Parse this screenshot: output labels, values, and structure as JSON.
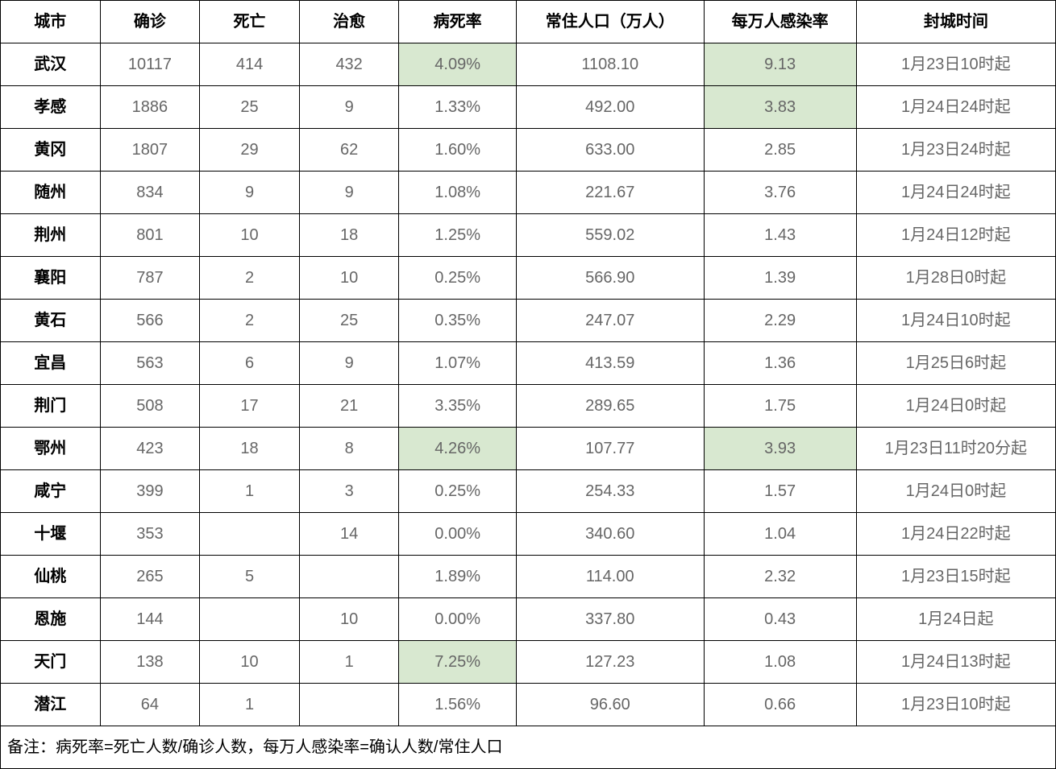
{
  "table": {
    "type": "table",
    "background_color": "#ffffff",
    "border_color": "#000000",
    "highlight_color": "#d8e8d0",
    "header_font_weight": "bold",
    "header_color": "#000000",
    "city_font_weight": "bold",
    "city_color": "#000000",
    "data_color": "#666666",
    "font_size": 20,
    "columns": [
      {
        "key": "city",
        "label": "城市",
        "width": "8.5%"
      },
      {
        "key": "confirmed",
        "label": "确诊",
        "width": "8.5%"
      },
      {
        "key": "death",
        "label": "死亡",
        "width": "8.5%"
      },
      {
        "key": "cured",
        "label": "治愈",
        "width": "8.5%"
      },
      {
        "key": "mortality",
        "label": "病死率",
        "width": "10%"
      },
      {
        "key": "population",
        "label": "常住人口（万人）",
        "width": "16%"
      },
      {
        "key": "infection_rate",
        "label": "每万人感染率",
        "width": "13%"
      },
      {
        "key": "lockdown",
        "label": "封城时间",
        "width": "17%"
      }
    ],
    "rows": [
      {
        "city": "武汉",
        "confirmed": "10117",
        "death": "414",
        "cured": "432",
        "mortality": "4.09%",
        "mortality_hl": true,
        "population": "1108.10",
        "infection_rate": "9.13",
        "infection_hl": true,
        "lockdown": "1月23日10时起"
      },
      {
        "city": "孝感",
        "confirmed": "1886",
        "death": "25",
        "cured": "9",
        "mortality": "1.33%",
        "mortality_hl": false,
        "population": "492.00",
        "infection_rate": "3.83",
        "infection_hl": true,
        "lockdown": "1月24日24时起"
      },
      {
        "city": "黄冈",
        "confirmed": "1807",
        "death": "29",
        "cured": "62",
        "mortality": "1.60%",
        "mortality_hl": false,
        "population": "633.00",
        "infection_rate": "2.85",
        "infection_hl": false,
        "lockdown": "1月23日24时起"
      },
      {
        "city": "随州",
        "confirmed": "834",
        "death": "9",
        "cured": "9",
        "mortality": "1.08%",
        "mortality_hl": false,
        "population": "221.67",
        "infection_rate": "3.76",
        "infection_hl": false,
        "lockdown": "1月24日24时起"
      },
      {
        "city": "荆州",
        "confirmed": "801",
        "death": "10",
        "cured": "18",
        "mortality": "1.25%",
        "mortality_hl": false,
        "population": "559.02",
        "infection_rate": "1.43",
        "infection_hl": false,
        "lockdown": "1月24日12时起"
      },
      {
        "city": "襄阳",
        "confirmed": "787",
        "death": "2",
        "cured": "10",
        "mortality": "0.25%",
        "mortality_hl": false,
        "population": "566.90",
        "infection_rate": "1.39",
        "infection_hl": false,
        "lockdown": "1月28日0时起"
      },
      {
        "city": "黄石",
        "confirmed": "566",
        "death": "2",
        "cured": "25",
        "mortality": "0.35%",
        "mortality_hl": false,
        "population": "247.07",
        "infection_rate": "2.29",
        "infection_hl": false,
        "lockdown": "1月24日10时起"
      },
      {
        "city": "宜昌",
        "confirmed": "563",
        "death": "6",
        "cured": "9",
        "mortality": "1.07%",
        "mortality_hl": false,
        "population": "413.59",
        "infection_rate": "1.36",
        "infection_hl": false,
        "lockdown": "1月25日6时起"
      },
      {
        "city": "荆门",
        "confirmed": "508",
        "death": "17",
        "cured": "21",
        "mortality": "3.35%",
        "mortality_hl": false,
        "population": "289.65",
        "infection_rate": "1.75",
        "infection_hl": false,
        "lockdown": "1月24日0时起"
      },
      {
        "city": "鄂州",
        "confirmed": "423",
        "death": "18",
        "cured": "8",
        "mortality": "4.26%",
        "mortality_hl": true,
        "population": "107.77",
        "infection_rate": "3.93",
        "infection_hl": true,
        "lockdown": "1月23日11时20分起"
      },
      {
        "city": "咸宁",
        "confirmed": "399",
        "death": "1",
        "cured": "3",
        "mortality": "0.25%",
        "mortality_hl": false,
        "population": "254.33",
        "infection_rate": "1.57",
        "infection_hl": false,
        "lockdown": "1月24日0时起"
      },
      {
        "city": "十堰",
        "confirmed": "353",
        "death": "",
        "cured": "14",
        "mortality": "0.00%",
        "mortality_hl": false,
        "population": "340.60",
        "infection_rate": "1.04",
        "infection_hl": false,
        "lockdown": "1月24日22时起"
      },
      {
        "city": "仙桃",
        "confirmed": "265",
        "death": "5",
        "cured": "",
        "mortality": "1.89%",
        "mortality_hl": false,
        "population": "114.00",
        "infection_rate": "2.32",
        "infection_hl": false,
        "lockdown": "1月23日15时起"
      },
      {
        "city": "恩施",
        "confirmed": "144",
        "death": "",
        "cured": "10",
        "mortality": "0.00%",
        "mortality_hl": false,
        "population": "337.80",
        "infection_rate": "0.43",
        "infection_hl": false,
        "lockdown": "1月24日起"
      },
      {
        "city": "天门",
        "confirmed": "138",
        "death": "10",
        "cured": "1",
        "mortality": "7.25%",
        "mortality_hl": true,
        "population": "127.23",
        "infection_rate": "1.08",
        "infection_hl": false,
        "lockdown": "1月24日13时起"
      },
      {
        "city": "潜江",
        "confirmed": "64",
        "death": "1",
        "cured": "",
        "mortality": "1.56%",
        "mortality_hl": false,
        "population": "96.60",
        "infection_rate": "0.66",
        "infection_hl": false,
        "lockdown": "1月23日10时起"
      }
    ],
    "footnote": "备注：病死率=死亡人数/确诊人数，每万人感染率=确认人数/常住人口"
  }
}
